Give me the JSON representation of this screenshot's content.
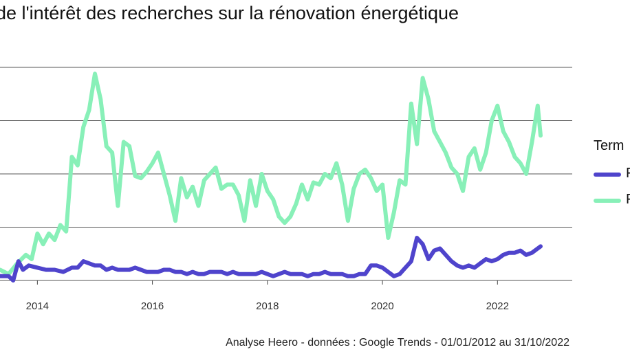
{
  "chart_data": {
    "type": "line",
    "title": "de l'intérêt des recherches sur la rénovation énergétique",
    "caption": "Analyse Heero - données : Google Trends - 01/01/2012 au 31/10/2022",
    "xlabel": "",
    "ylabel": "",
    "xlim": [
      2013.35,
      2023.3
    ],
    "ylim": [
      0,
      100
    ],
    "x_ticks": [
      2014,
      2016,
      2018,
      2020,
      2022
    ],
    "x_tick_labels": [
      "2014",
      "2016",
      "2018",
      "2020",
      "2022"
    ],
    "y_gridlines": [
      0,
      25,
      50,
      75,
      100
    ],
    "legend": {
      "title": "Term",
      "position": "right",
      "labels": [
        "F",
        "F"
      ]
    },
    "series": [
      {
        "name": "F",
        "color": "#4f44cc",
        "x": [
          2013.35,
          2013.5,
          2013.58,
          2013.67,
          2013.75,
          2013.85,
          2014.0,
          2014.15,
          2014.3,
          2014.45,
          2014.6,
          2014.7,
          2014.8,
          2014.9,
          2015.0,
          2015.1,
          2015.2,
          2015.3,
          2015.4,
          2015.5,
          2015.6,
          2015.7,
          2015.8,
          2015.9,
          2016.0,
          2016.1,
          2016.2,
          2016.3,
          2016.4,
          2016.5,
          2016.6,
          2016.7,
          2016.8,
          2016.9,
          2017.0,
          2017.1,
          2017.2,
          2017.3,
          2017.4,
          2017.5,
          2017.6,
          2017.7,
          2017.8,
          2017.9,
          2018.0,
          2018.1,
          2018.2,
          2018.3,
          2018.4,
          2018.5,
          2018.6,
          2018.7,
          2018.8,
          2018.9,
          2019.0,
          2019.1,
          2019.2,
          2019.3,
          2019.4,
          2019.5,
          2019.6,
          2019.7,
          2019.8,
          2019.9,
          2020.0,
          2020.1,
          2020.2,
          2020.3,
          2020.4,
          2020.5,
          2020.6,
          2020.7,
          2020.8,
          2020.9,
          2021.0,
          2021.1,
          2021.2,
          2021.3,
          2021.4,
          2021.5,
          2021.6,
          2021.7,
          2021.8,
          2021.9,
          2022.0,
          2022.1,
          2022.2,
          2022.3,
          2022.4,
          2022.5,
          2022.6,
          2022.7,
          2022.75
        ],
        "values": [
          2,
          2,
          0,
          9,
          5,
          7,
          6,
          5,
          5,
          4,
          6,
          6,
          9,
          8,
          7,
          7,
          5,
          6,
          5,
          5,
          5,
          6,
          5,
          4,
          4,
          4,
          5,
          5,
          4,
          4,
          3,
          4,
          3,
          3,
          4,
          4,
          4,
          3,
          4,
          3,
          3,
          3,
          3,
          4,
          3,
          2,
          3,
          4,
          3,
          3,
          3,
          2,
          3,
          3,
          4,
          3,
          3,
          3,
          2,
          2,
          3,
          3,
          7,
          7,
          6,
          4,
          2,
          3,
          6,
          9,
          20,
          17,
          10,
          14,
          15,
          12,
          9,
          7,
          6,
          7,
          6,
          8,
          10,
          9,
          10,
          12,
          13,
          13,
          14,
          12,
          13,
          15,
          16
        ]
      },
      {
        "name": "F",
        "color": "#88f0b8",
        "x": [
          2013.35,
          2013.5,
          2013.65,
          2013.8,
          2013.9,
          2014.0,
          2014.1,
          2014.2,
          2014.3,
          2014.4,
          2014.5,
          2014.6,
          2014.7,
          2014.8,
          2014.9,
          2015.0,
          2015.1,
          2015.2,
          2015.3,
          2015.4,
          2015.5,
          2015.6,
          2015.7,
          2015.8,
          2015.9,
          2016.0,
          2016.1,
          2016.2,
          2016.3,
          2016.4,
          2016.5,
          2016.6,
          2016.7,
          2016.8,
          2016.9,
          2017.0,
          2017.1,
          2017.2,
          2017.3,
          2017.4,
          2017.5,
          2017.6,
          2017.7,
          2017.8,
          2017.9,
          2018.0,
          2018.1,
          2018.2,
          2018.3,
          2018.4,
          2018.5,
          2018.6,
          2018.7,
          2018.8,
          2018.9,
          2019.0,
          2019.1,
          2019.2,
          2019.3,
          2019.4,
          2019.5,
          2019.6,
          2019.7,
          2019.8,
          2019.9,
          2020.0,
          2020.1,
          2020.2,
          2020.3,
          2020.4,
          2020.5,
          2020.6,
          2020.7,
          2020.8,
          2020.9,
          2021.0,
          2021.1,
          2021.2,
          2021.3,
          2021.4,
          2021.5,
          2021.6,
          2021.7,
          2021.8,
          2021.9,
          2022.0,
          2022.1,
          2022.2,
          2022.3,
          2022.4,
          2022.5,
          2022.6,
          2022.7,
          2022.75
        ],
        "values": [
          5,
          3,
          8,
          12,
          10,
          22,
          17,
          22,
          19,
          26,
          23,
          58,
          54,
          72,
          80,
          97,
          85,
          63,
          60,
          35,
          65,
          63,
          49,
          48,
          51,
          55,
          60,
          50,
          40,
          28,
          48,
          39,
          44,
          35,
          47,
          50,
          53,
          43,
          45,
          45,
          40,
          28,
          47,
          35,
          50,
          42,
          38,
          30,
          27,
          30,
          36,
          45,
          38,
          46,
          45,
          50,
          48,
          55,
          45,
          28,
          43,
          50,
          52,
          48,
          42,
          45,
          20,
          32,
          47,
          45,
          83,
          64,
          95,
          85,
          70,
          65,
          60,
          53,
          50,
          42,
          58,
          62,
          52,
          60,
          75,
          82,
          70,
          65,
          58,
          55,
          50,
          65,
          82,
          68
        ]
      }
    ]
  }
}
